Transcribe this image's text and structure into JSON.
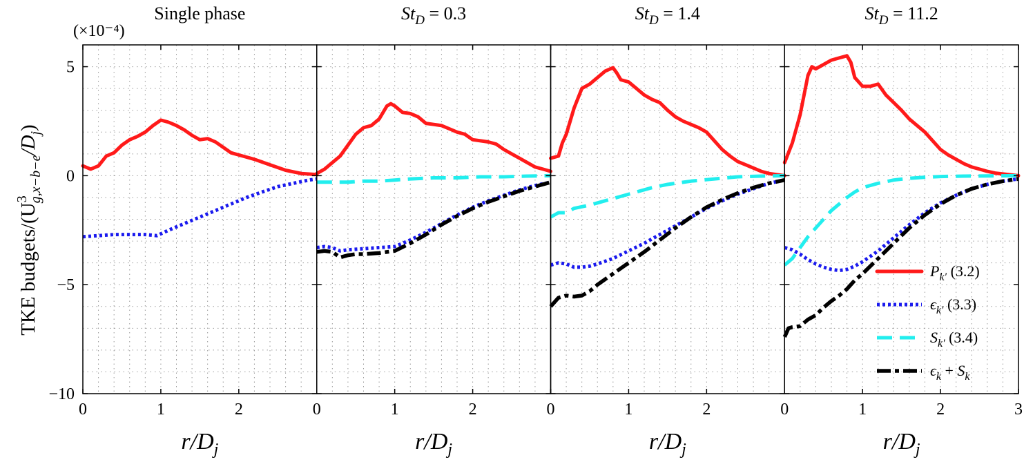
{
  "chart_data": {
    "type": "line",
    "xlabel": "r/D_j",
    "ylabel": "TKE budgets/(U^3_{g,x−b−e}/D_j)",
    "exponent_label": "(×10⁻⁴)",
    "xlim": [
      0,
      3
    ],
    "ylim": [
      -10,
      6
    ],
    "xticks": [
      "0",
      "1",
      "2",
      "3"
    ],
    "yticks": [
      "−10",
      "−5",
      "0",
      "5"
    ],
    "grid": true,
    "legend": {
      "placement": "bottom-right of last panel",
      "entries": [
        {
          "key": "Pk",
          "sym": "P",
          "sub": "k′",
          "ref": "(3.2)",
          "color": "#ff1a1a",
          "style": "solid"
        },
        {
          "key": "ek",
          "sym": "ϵ",
          "sub": "k′",
          "ref": "(3.3)",
          "color": "#1a1aee",
          "style": "dotted"
        },
        {
          "key": "Sk",
          "sym": "S",
          "sub": "k′",
          "ref": "(3.4)",
          "color": "#22eeee",
          "style": "dashed"
        },
        {
          "key": "eS",
          "sym": "ϵ",
          "sub": "k",
          "plus": " + ",
          "sym2": "S",
          "sub2": "k",
          "ref": "",
          "color": "#000000",
          "style": "dashdot"
        }
      ]
    },
    "panels": [
      {
        "title": "Single phase",
        "title_parts": null,
        "series": [
          {
            "key": "Pk",
            "x": [
              0,
              0.1,
              0.2,
              0.3,
              0.4,
              0.5,
              0.6,
              0.7,
              0.8,
              0.9,
              1.0,
              1.1,
              1.2,
              1.3,
              1.4,
              1.5,
              1.6,
              1.7,
              1.8,
              1.9,
              2.0,
              2.1,
              2.2,
              2.4,
              2.6,
              2.8,
              3.0
            ],
            "y": [
              0.45,
              0.3,
              0.45,
              0.9,
              1.05,
              1.4,
              1.65,
              1.8,
              2.0,
              2.3,
              2.55,
              2.45,
              2.3,
              2.1,
              1.85,
              1.65,
              1.7,
              1.55,
              1.3,
              1.05,
              0.95,
              0.85,
              0.75,
              0.5,
              0.25,
              0.1,
              0.05
            ]
          },
          {
            "key": "ek",
            "x": [
              0,
              0.2,
              0.4,
              0.6,
              0.8,
              0.95,
              1.1,
              1.3,
              1.5,
              1.7,
              1.9,
              2.1,
              2.3,
              2.5,
              2.7,
              2.9,
              3.0
            ],
            "y": [
              -2.8,
              -2.75,
              -2.7,
              -2.7,
              -2.7,
              -2.75,
              -2.5,
              -2.2,
              -1.9,
              -1.6,
              -1.3,
              -1.0,
              -0.75,
              -0.5,
              -0.35,
              -0.2,
              -0.15
            ]
          }
        ]
      },
      {
        "title": "",
        "title_parts": {
          "sym": "St",
          "sub": "D",
          "value": " = 0.3"
        },
        "series": [
          {
            "key": "Pk",
            "x": [
              0,
              0.1,
              0.2,
              0.3,
              0.4,
              0.5,
              0.6,
              0.7,
              0.8,
              0.9,
              0.95,
              1.0,
              1.1,
              1.2,
              1.3,
              1.4,
              1.5,
              1.6,
              1.7,
              1.8,
              1.9,
              2.0,
              2.1,
              2.2,
              2.3,
              2.4,
              2.5,
              2.6,
              2.7,
              2.8,
              2.9,
              3.0
            ],
            "y": [
              0.1,
              0.3,
              0.6,
              0.9,
              1.4,
              1.9,
              2.2,
              2.3,
              2.6,
              3.2,
              3.3,
              3.2,
              2.9,
              2.85,
              2.7,
              2.4,
              2.35,
              2.3,
              2.15,
              2.0,
              1.9,
              1.65,
              1.6,
              1.55,
              1.45,
              1.2,
              1.0,
              0.8,
              0.6,
              0.4,
              0.3,
              0.2
            ]
          },
          {
            "key": "ek",
            "x": [
              0,
              0.1,
              0.2,
              0.3,
              0.4,
              0.6,
              0.8,
              1.0,
              1.2,
              1.4,
              1.6,
              1.8,
              2.0,
              2.2,
              2.4,
              2.6,
              2.8,
              3.0
            ],
            "y": [
              -3.3,
              -3.25,
              -3.3,
              -3.45,
              -3.4,
              -3.35,
              -3.3,
              -3.25,
              -2.95,
              -2.6,
              -2.2,
              -1.8,
              -1.45,
              -1.15,
              -0.9,
              -0.65,
              -0.45,
              -0.3
            ]
          },
          {
            "key": "Sk",
            "x": [
              0,
              0.2,
              0.4,
              0.6,
              0.8,
              1.0,
              1.2,
              1.5,
              1.8,
              2.1,
              2.4,
              2.7,
              3.0
            ],
            "y": [
              -0.3,
              -0.3,
              -0.3,
              -0.25,
              -0.25,
              -0.2,
              -0.15,
              -0.1,
              -0.1,
              -0.05,
              -0.05,
              -0.02,
              0
            ]
          },
          {
            "key": "eS",
            "x": [
              0,
              0.1,
              0.2,
              0.3,
              0.4,
              0.5,
              0.6,
              0.8,
              1.0,
              1.2,
              1.4,
              1.6,
              1.8,
              2.0,
              2.2,
              2.4,
              2.6,
              2.8,
              3.0
            ],
            "y": [
              -3.5,
              -3.45,
              -3.5,
              -3.75,
              -3.65,
              -3.6,
              -3.6,
              -3.55,
              -3.45,
              -3.1,
              -2.7,
              -2.25,
              -1.85,
              -1.5,
              -1.2,
              -0.95,
              -0.7,
              -0.5,
              -0.3
            ]
          }
        ]
      },
      {
        "title": "",
        "title_parts": {
          "sym": "St",
          "sub": "D",
          "value": " = 1.4"
        },
        "series": [
          {
            "key": "Pk",
            "x": [
              0,
              0.1,
              0.15,
              0.2,
              0.3,
              0.4,
              0.5,
              0.6,
              0.7,
              0.8,
              0.85,
              0.9,
              1.0,
              1.1,
              1.2,
              1.3,
              1.4,
              1.5,
              1.6,
              1.7,
              1.8,
              1.9,
              2.0,
              2.1,
              2.2,
              2.3,
              2.4,
              2.5,
              2.6,
              2.7,
              2.8,
              2.9,
              3.0
            ],
            "y": [
              0.8,
              0.9,
              1.5,
              1.9,
              3.1,
              4.0,
              4.2,
              4.5,
              4.8,
              4.95,
              4.7,
              4.4,
              4.3,
              4.0,
              3.7,
              3.5,
              3.35,
              3.0,
              2.7,
              2.5,
              2.35,
              2.2,
              2.0,
              1.6,
              1.2,
              0.9,
              0.65,
              0.5,
              0.35,
              0.2,
              0.1,
              0.05,
              0.0
            ]
          },
          {
            "key": "ek",
            "x": [
              0,
              0.1,
              0.2,
              0.3,
              0.4,
              0.5,
              0.6,
              0.8,
              1.0,
              1.2,
              1.4,
              1.6,
              1.8,
              2.0,
              2.2,
              2.4,
              2.6,
              2.8,
              3.0
            ],
            "y": [
              -4.1,
              -4.0,
              -4.05,
              -4.2,
              -4.2,
              -4.15,
              -4.05,
              -3.8,
              -3.45,
              -3.1,
              -2.7,
              -2.3,
              -1.9,
              -1.5,
              -1.15,
              -0.85,
              -0.6,
              -0.35,
              -0.2
            ]
          },
          {
            "key": "Sk",
            "x": [
              0,
              0.1,
              0.2,
              0.3,
              0.5,
              0.7,
              0.9,
              1.1,
              1.3,
              1.5,
              1.8,
              2.1,
              2.4,
              2.7,
              3.0
            ],
            "y": [
              -1.9,
              -1.7,
              -1.7,
              -1.5,
              -1.35,
              -1.15,
              -0.95,
              -0.75,
              -0.55,
              -0.4,
              -0.25,
              -0.15,
              -0.05,
              -0.02,
              0
            ]
          },
          {
            "key": "eS",
            "x": [
              0,
              0.1,
              0.2,
              0.3,
              0.4,
              0.5,
              0.6,
              0.8,
              1.0,
              1.2,
              1.4,
              1.6,
              1.8,
              2.0,
              2.2,
              2.4,
              2.6,
              2.8,
              3.0
            ],
            "y": [
              -6.0,
              -5.6,
              -5.5,
              -5.55,
              -5.5,
              -5.3,
              -5.0,
              -4.5,
              -4.0,
              -3.5,
              -2.95,
              -2.4,
              -1.9,
              -1.45,
              -1.1,
              -0.8,
              -0.55,
              -0.35,
              -0.2
            ]
          }
        ]
      },
      {
        "title": "",
        "title_parts": {
          "sym": "St",
          "sub": "D",
          "value": " = 11.2"
        },
        "series": [
          {
            "key": "Pk",
            "x": [
              0,
              0.1,
              0.2,
              0.3,
              0.35,
              0.4,
              0.5,
              0.6,
              0.7,
              0.8,
              0.85,
              0.9,
              1.0,
              1.1,
              1.2,
              1.3,
              1.4,
              1.5,
              1.6,
              1.7,
              1.8,
              1.9,
              2.0,
              2.1,
              2.2,
              2.3,
              2.4,
              2.5,
              2.6,
              2.7,
              2.8,
              2.9,
              3.0
            ],
            "y": [
              0.6,
              1.5,
              2.8,
              4.6,
              5.0,
              4.9,
              5.1,
              5.3,
              5.4,
              5.5,
              5.2,
              4.5,
              4.1,
              4.1,
              4.2,
              3.7,
              3.35,
              3.0,
              2.6,
              2.3,
              2.0,
              1.6,
              1.2,
              0.95,
              0.75,
              0.55,
              0.4,
              0.3,
              0.2,
              0.12,
              0.08,
              0.04,
              0.0
            ]
          },
          {
            "key": "ek",
            "x": [
              0,
              0.1,
              0.2,
              0.3,
              0.4,
              0.5,
              0.6,
              0.7,
              0.8,
              0.9,
              1.0,
              1.1,
              1.2,
              1.4,
              1.6,
              1.8,
              2.0,
              2.2,
              2.4,
              2.6,
              2.8,
              3.0
            ],
            "y": [
              -3.3,
              -3.4,
              -3.6,
              -3.85,
              -4.05,
              -4.2,
              -4.3,
              -4.35,
              -4.3,
              -4.15,
              -3.95,
              -3.7,
              -3.45,
              -2.85,
              -2.25,
              -1.7,
              -1.25,
              -0.9,
              -0.6,
              -0.4,
              -0.25,
              -0.15
            ]
          },
          {
            "key": "Sk",
            "x": [
              0,
              0.1,
              0.2,
              0.3,
              0.4,
              0.5,
              0.6,
              0.7,
              0.8,
              0.9,
              1.0,
              1.2,
              1.4,
              1.6,
              1.8,
              2.0,
              2.3,
              2.6,
              3.0
            ],
            "y": [
              -4.1,
              -3.8,
              -3.3,
              -2.8,
              -2.4,
              -2.0,
              -1.6,
              -1.3,
              -1.0,
              -0.75,
              -0.55,
              -0.35,
              -0.2,
              -0.12,
              -0.07,
              -0.04,
              -0.02,
              -0.01,
              0
            ]
          },
          {
            "key": "eS",
            "x": [
              0,
              0.05,
              0.1,
              0.2,
              0.3,
              0.4,
              0.5,
              0.6,
              0.7,
              0.8,
              0.9,
              1.0,
              1.2,
              1.4,
              1.6,
              1.8,
              2.0,
              2.2,
              2.4,
              2.6,
              2.8,
              3.0
            ],
            "y": [
              -7.4,
              -7.0,
              -6.95,
              -6.9,
              -6.6,
              -6.4,
              -6.05,
              -5.75,
              -5.5,
              -5.2,
              -4.8,
              -4.5,
              -3.8,
              -3.1,
              -2.4,
              -1.8,
              -1.3,
              -0.9,
              -0.6,
              -0.4,
              -0.25,
              -0.15
            ]
          }
        ]
      }
    ]
  }
}
